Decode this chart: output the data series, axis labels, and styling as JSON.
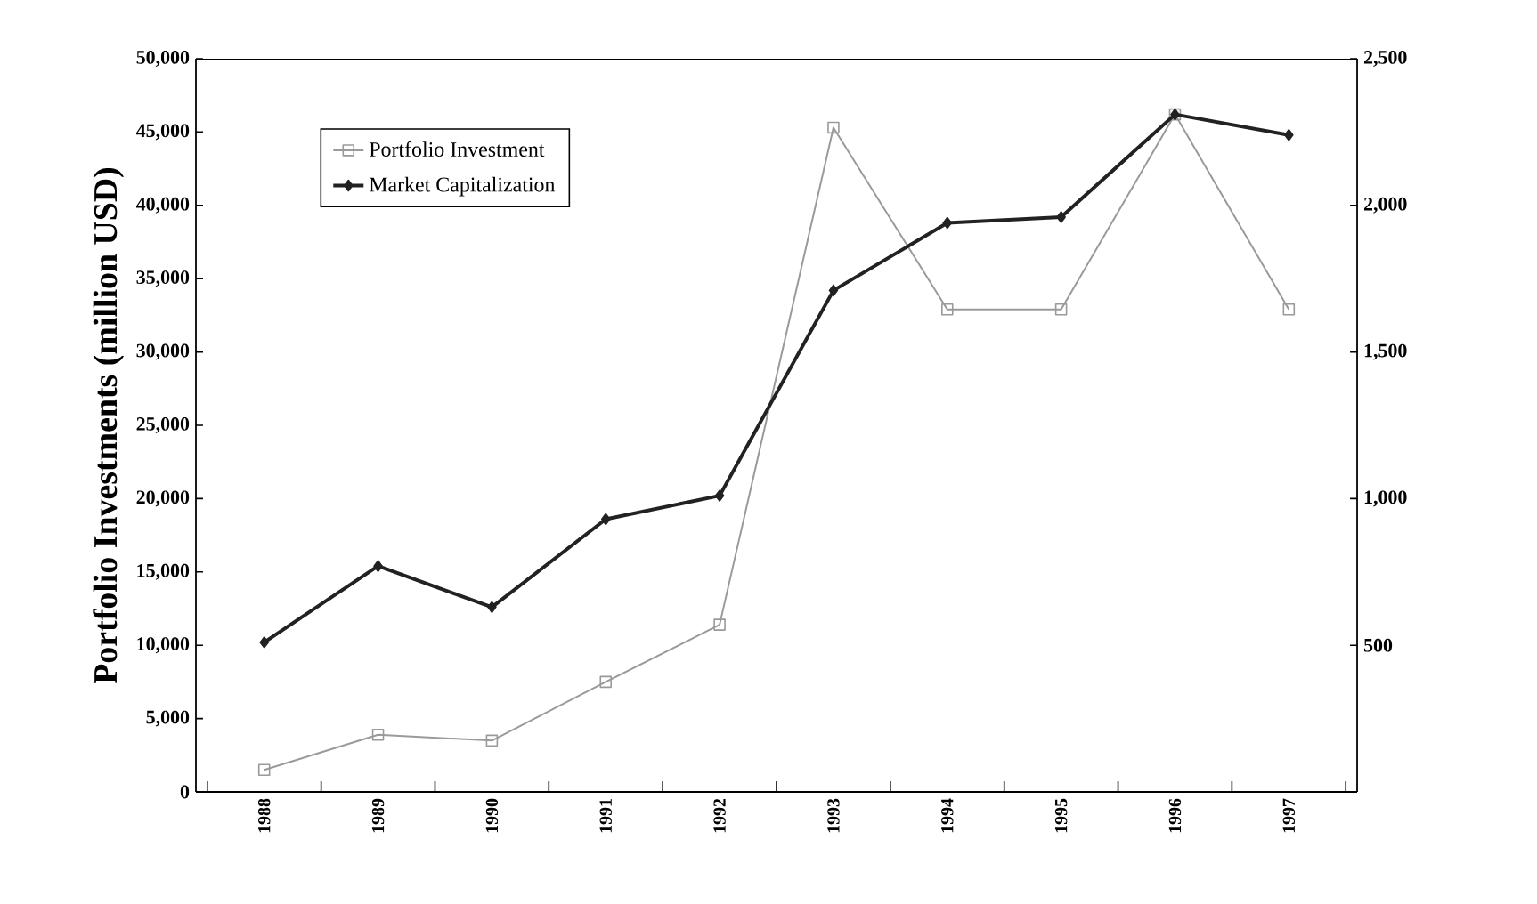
{
  "chart_data": {
    "type": "line",
    "ylabel": "Portfolio Investments (million USD)",
    "categories": [
      "1988",
      "1989",
      "1990",
      "1991",
      "1992",
      "1993",
      "1994",
      "1995",
      "1996",
      "1997"
    ],
    "series": [
      {
        "name": "Portfolio Investment",
        "color": "#9a9a9a",
        "marker": "square",
        "values": [
          1500,
          3900,
          3500,
          7500,
          11400,
          45300,
          32900,
          32900,
          46200,
          32900
        ]
      },
      {
        "name": "Market Capitalization",
        "color": "#222222",
        "marker": "diamond",
        "axis": "y2",
        "values": [
          510,
          770,
          630,
          930,
          1010,
          1710,
          1940,
          1960,
          2310,
          2240
        ]
      }
    ],
    "ylim": [
      0,
      50000
    ],
    "yticks": [
      0,
      {
        "value": 5000,
        "label": "5,000"
      },
      {
        "value": 10000,
        "label": "10,000"
      },
      {
        "value": 15000,
        "label": "15,000"
      },
      {
        "value": 20000,
        "label": "20,000"
      },
      {
        "value": 25000,
        "label": "25,000"
      },
      {
        "value": 30000,
        "label": "30,000"
      },
      {
        "value": 35000,
        "label": "35,000"
      },
      {
        "value": 40000,
        "label": "40,000"
      },
      {
        "value": 45000,
        "label": "45,000"
      },
      {
        "value": 50000,
        "label": "50,000"
      }
    ],
    "y2lim": [
      0,
      2500
    ],
    "y2ticks": [
      500,
      {
        "value": 1000,
        "label": "1,000"
      },
      {
        "value": 1500,
        "label": "1,500"
      },
      {
        "value": 2000,
        "label": "2,000"
      },
      {
        "value": 2500,
        "label": "2,500"
      }
    ],
    "legend": "top left",
    "grid": false
  }
}
